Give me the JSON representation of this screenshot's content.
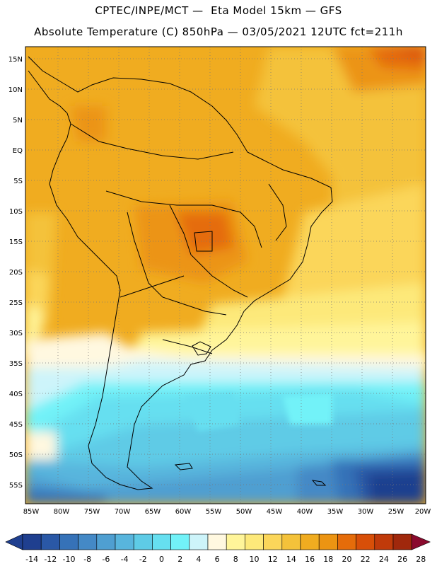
{
  "header": {
    "line1": "CPTEC/INPE/MCT —  Eta Model 15km — GFS",
    "line2": "Absolute Temperature (C) 850hPa — 03/05/2021 12UTC fct=211h"
  },
  "axes": {
    "lat_labels": [
      "15N",
      "10N",
      "5N",
      "EQ",
      "5S",
      "10S",
      "15S",
      "20S",
      "25S",
      "30S",
      "35S",
      "40S",
      "45S",
      "50S",
      "55S"
    ],
    "lon_labels": [
      "85W",
      "80W",
      "75W",
      "70W",
      "65W",
      "60W",
      "55W",
      "50W",
      "45W",
      "40W",
      "35W",
      "30W",
      "25W",
      "20W"
    ]
  },
  "colorbar": {
    "labels": [
      "-14",
      "-12",
      "-10",
      "-8",
      "-6",
      "-4",
      "-2",
      "0",
      "2",
      "4",
      "6",
      "8",
      "10",
      "12",
      "14",
      "16",
      "18",
      "20",
      "22",
      "24",
      "26",
      "28"
    ],
    "colors": [
      "#1f3f8f",
      "#2a58a6",
      "#3672b8",
      "#4489c6",
      "#4f9fd1",
      "#58b5dd",
      "#5ecbe6",
      "#66dff0",
      "#72f2f8",
      "#cdf4fa",
      "#fff8e0",
      "#fff59a",
      "#fde97a",
      "#fbd65a",
      "#f4c23a",
      "#f0ac20",
      "#ec9412",
      "#e56c0a",
      "#d84f08",
      "#c03a0a",
      "#a0280c",
      "#7c1c0e",
      "#8a0a2e"
    ]
  }
}
